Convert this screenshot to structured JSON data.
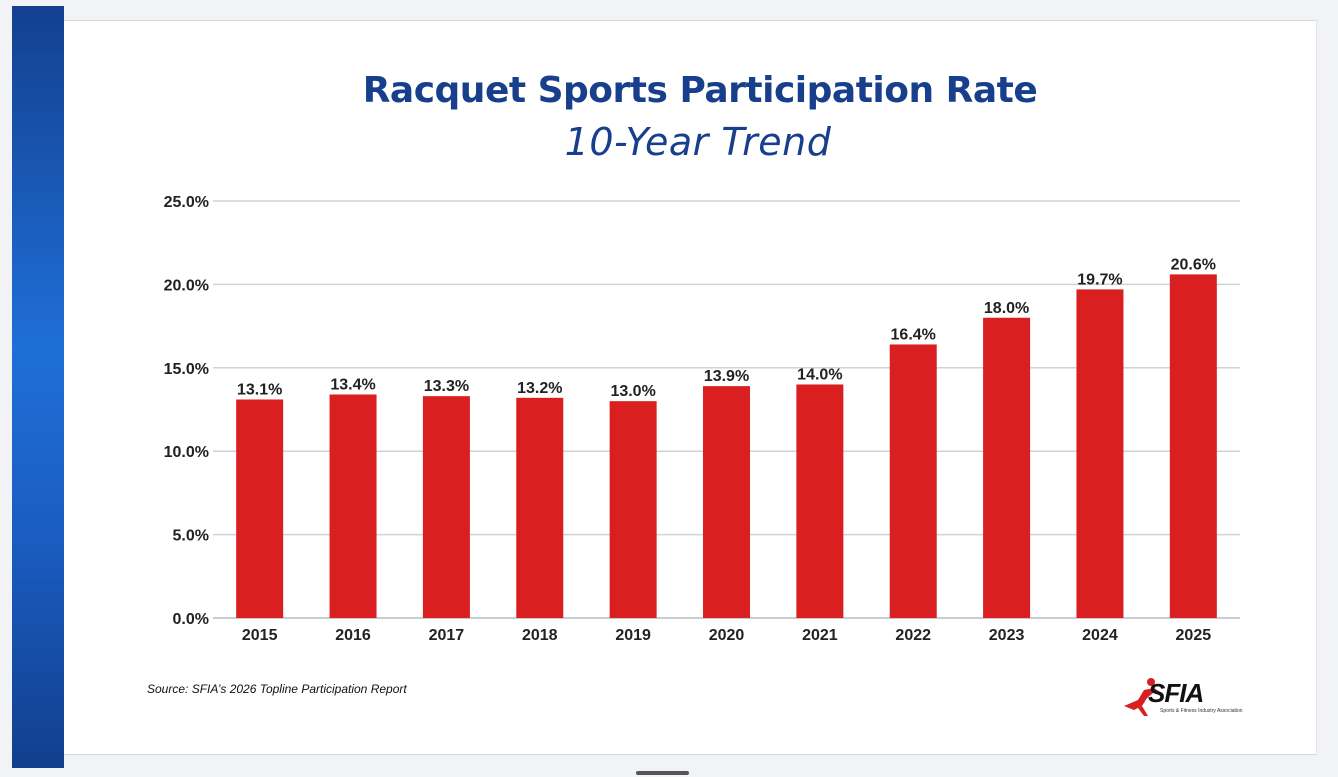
{
  "source_note": "Source: SFIA’s 2026 Topline Participation Report",
  "logo": {
    "text": "SFIA",
    "tagline": "Sports & Fitness Industry Association"
  },
  "colors": {
    "bar": "#d91f1f",
    "title": "#173f8b",
    "grid": "#cfd2d8",
    "accent": "#1a5cc0"
  },
  "chart_data": {
    "type": "bar",
    "title": "Racquet Sports Participation Rate",
    "subtitle": "10-Year Trend",
    "xlabel": "",
    "ylabel": "",
    "categories": [
      "2015",
      "2016",
      "2017",
      "2018",
      "2019",
      "2020",
      "2021",
      "2022",
      "2023",
      "2024",
      "2025"
    ],
    "values": [
      13.1,
      13.4,
      13.3,
      13.2,
      13.0,
      13.9,
      14.0,
      16.4,
      18.0,
      19.7,
      20.6
    ],
    "value_labels": [
      "13.1%",
      "13.4%",
      "13.3%",
      "13.2%",
      "13.0%",
      "13.9%",
      "14.0%",
      "16.4%",
      "18.0%",
      "19.7%",
      "20.6%"
    ],
    "ylim": [
      0,
      25
    ],
    "yticks": [
      0,
      5,
      10,
      15,
      20,
      25
    ],
    "ytick_labels": [
      "0.0%",
      "5.0%",
      "10.0%",
      "15.0%",
      "20.0%",
      "25.0%"
    ],
    "grid": true,
    "legend": "none"
  }
}
